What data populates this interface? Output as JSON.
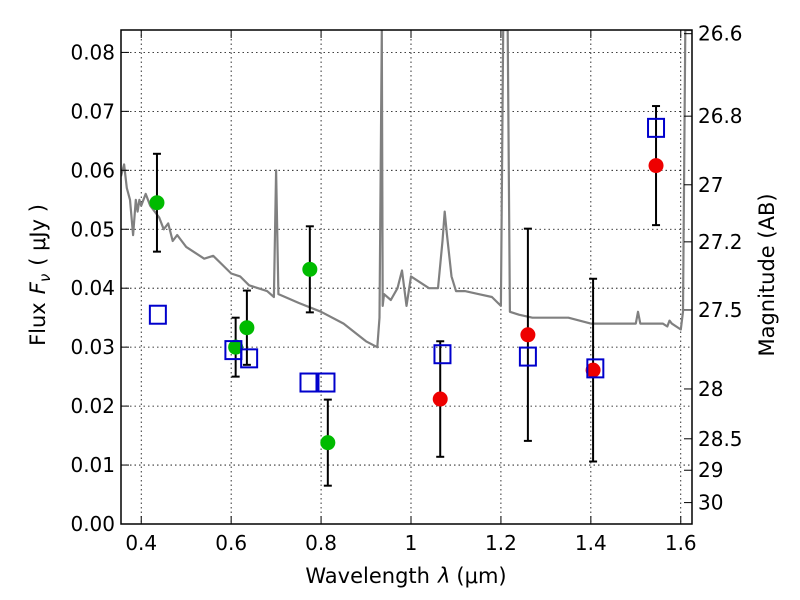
{
  "chart_data": {
    "type": "scatter",
    "title": "",
    "xlabel": "Wavelength",
    "xlabel_symbol": "λ",
    "xlabel_units": "(μm)",
    "ylabel": "Flux",
    "ylabel_symbol": "F",
    "ylabel_subscript": "ν",
    "ylabel_units": "( μJy )",
    "y2label": "Magnitude (AB)",
    "xlim": [
      0.355,
      1.625
    ],
    "ylim": [
      0.0,
      0.0838
    ],
    "grid": true,
    "x_ticks": [
      0.4,
      0.6,
      0.8,
      1.0,
      1.2,
      1.4,
      1.6
    ],
    "x_tick_labels": [
      "0.4",
      "0.6",
      "0.8",
      "1",
      "1.2",
      "1.4",
      "1.6"
    ],
    "y_ticks": [
      0.0,
      0.01,
      0.02,
      0.03,
      0.04,
      0.05,
      0.06,
      0.07,
      0.08
    ],
    "y_tick_labels": [
      "0.00",
      "0.01",
      "0.02",
      "0.03",
      "0.04",
      "0.05",
      "0.06",
      "0.07",
      "0.08"
    ],
    "mag_ticks": [
      26.6,
      26.8,
      27.0,
      27.2,
      27.5,
      28.0,
      28.5,
      29.0,
      30.0
    ],
    "mag_tick_labels": [
      "26.6",
      "26.8",
      "27",
      "27.2",
      "27.5",
      "28",
      "28.5",
      "29",
      "30"
    ],
    "colors": {
      "template": "#808080",
      "detected": "#00bb00",
      "upper": "#ee0000",
      "model": "#0000cc",
      "errorbar": "#000000"
    },
    "series": [
      {
        "name": "template spectrum",
        "kind": "line",
        "color": "#808080",
        "x": [
          0.355,
          0.362,
          0.368,
          0.375,
          0.382,
          0.388,
          0.392,
          0.396,
          0.4,
          0.41,
          0.42,
          0.43,
          0.44,
          0.45,
          0.46,
          0.47,
          0.48,
          0.49,
          0.5,
          0.52,
          0.54,
          0.56,
          0.58,
          0.6,
          0.62,
          0.64,
          0.66,
          0.68,
          0.695,
          0.7,
          0.705,
          0.72,
          0.75,
          0.8,
          0.85,
          0.9,
          0.925,
          0.93,
          0.935,
          0.937,
          0.94,
          0.955,
          0.97,
          0.98,
          0.99,
          1.0,
          1.02,
          1.04,
          1.06,
          1.07,
          1.075,
          1.08,
          1.09,
          1.1,
          1.12,
          1.15,
          1.18,
          1.2,
          1.205,
          1.21,
          1.215,
          1.22,
          1.24,
          1.27,
          1.3,
          1.35,
          1.4,
          1.45,
          1.5,
          1.505,
          1.51,
          1.54,
          1.56,
          1.57,
          1.575,
          1.58,
          1.6,
          1.605,
          1.61,
          1.625
        ],
        "y": [
          0.059,
          0.061,
          0.057,
          0.055,
          0.049,
          0.055,
          0.053,
          0.055,
          0.054,
          0.056,
          0.054,
          0.053,
          0.052,
          0.05,
          0.051,
          0.048,
          0.049,
          0.048,
          0.047,
          0.046,
          0.045,
          0.0455,
          0.044,
          0.0425,
          0.042,
          0.0405,
          0.04,
          0.0395,
          0.0385,
          0.06,
          0.039,
          0.0385,
          0.0375,
          0.036,
          0.034,
          0.031,
          0.03,
          0.035,
          0.0838,
          0.037,
          0.039,
          0.038,
          0.04,
          0.043,
          0.037,
          0.042,
          0.041,
          0.04,
          0.04,
          0.048,
          0.053,
          0.049,
          0.042,
          0.0395,
          0.0395,
          0.039,
          0.0385,
          0.037,
          0.0838,
          0.0838,
          0.0838,
          0.036,
          0.0355,
          0.035,
          0.035,
          0.035,
          0.034,
          0.034,
          0.034,
          0.036,
          0.034,
          0.034,
          0.034,
          0.0335,
          0.0345,
          0.034,
          0.033,
          0.036,
          0.0838,
          0.0838
        ]
      },
      {
        "name": "detections",
        "kind": "points",
        "marker": "circle",
        "color": "#00bb00",
        "x": [
          0.435,
          0.61,
          0.635,
          0.775,
          0.815
        ],
        "y": [
          0.0545,
          0.03,
          0.0333,
          0.0432,
          0.0138
        ],
        "yerr": [
          0.0083,
          0.005,
          0.0063,
          0.0073,
          0.0073
        ]
      },
      {
        "name": "upper limits",
        "kind": "points",
        "marker": "circle",
        "color": "#ee0000",
        "x": [
          1.065,
          1.26,
          1.405,
          1.545
        ],
        "y": [
          0.0212,
          0.0321,
          0.0261,
          0.0608
        ],
        "yerr": [
          0.0098,
          0.018,
          0.0155,
          0.0101
        ]
      },
      {
        "name": "model photometry",
        "kind": "points",
        "marker": "square-open",
        "color": "#0000cc",
        "x": [
          0.437,
          0.605,
          0.64,
          0.772,
          0.812,
          1.07,
          1.26,
          1.41,
          1.545
        ],
        "y": [
          0.0355,
          0.0295,
          0.0281,
          0.024,
          0.024,
          0.0288,
          0.0284,
          0.0264,
          0.0672
        ]
      }
    ]
  }
}
